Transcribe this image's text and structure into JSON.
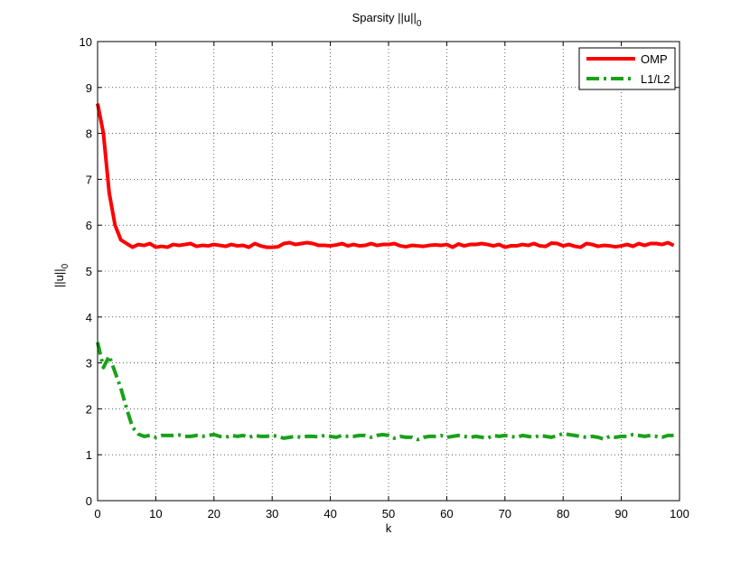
{
  "chart_data": {
    "type": "line",
    "title": "Sparsity ||u||",
    "title_subscript": "0",
    "xlabel": "k",
    "ylabel": "||u||",
    "ylabel_subscript": "0",
    "xlim": [
      0,
      100
    ],
    "ylim": [
      0,
      10
    ],
    "xticks": [
      0,
      10,
      20,
      30,
      40,
      50,
      60,
      70,
      80,
      90,
      100
    ],
    "yticks": [
      0,
      1,
      2,
      3,
      4,
      5,
      6,
      7,
      8,
      9,
      10
    ],
    "grid": true,
    "legend_position": "top-right",
    "x": [
      0,
      1,
      2,
      3,
      4,
      5,
      6,
      7,
      8,
      9,
      10,
      11,
      12,
      13,
      14,
      15,
      16,
      17,
      18,
      19,
      20,
      21,
      22,
      23,
      24,
      25,
      26,
      27,
      28,
      29,
      30,
      31,
      32,
      33,
      34,
      35,
      36,
      37,
      38,
      39,
      40,
      41,
      42,
      43,
      44,
      45,
      46,
      47,
      48,
      49,
      50,
      51,
      52,
      53,
      54,
      55,
      56,
      57,
      58,
      59,
      60,
      61,
      62,
      63,
      64,
      65,
      66,
      67,
      68,
      69,
      70,
      71,
      72,
      73,
      74,
      75,
      76,
      77,
      78,
      79,
      80,
      81,
      82,
      83,
      84,
      85,
      86,
      87,
      88,
      89,
      90,
      91,
      92,
      93,
      94,
      95,
      96,
      97,
      98,
      99
    ],
    "series": [
      {
        "name": "OMP",
        "color": "#ff0000",
        "style": "solid",
        "values": [
          8.65,
          8.0,
          6.7,
          6.0,
          5.68,
          5.6,
          5.52,
          5.58,
          5.56,
          5.6,
          5.52,
          5.54,
          5.52,
          5.58,
          5.56,
          5.58,
          5.6,
          5.54,
          5.56,
          5.55,
          5.58,
          5.56,
          5.54,
          5.58,
          5.55,
          5.56,
          5.52,
          5.6,
          5.55,
          5.52,
          5.52,
          5.53,
          5.6,
          5.62,
          5.58,
          5.6,
          5.62,
          5.6,
          5.56,
          5.56,
          5.55,
          5.57,
          5.6,
          5.55,
          5.58,
          5.55,
          5.56,
          5.6,
          5.56,
          5.58,
          5.58,
          5.6,
          5.55,
          5.53,
          5.56,
          5.55,
          5.54,
          5.56,
          5.57,
          5.56,
          5.58,
          5.52,
          5.59,
          5.55,
          5.58,
          5.58,
          5.6,
          5.58,
          5.55,
          5.58,
          5.52,
          5.55,
          5.55,
          5.58,
          5.56,
          5.6,
          5.55,
          5.54,
          5.61,
          5.6,
          5.55,
          5.58,
          5.54,
          5.52,
          5.6,
          5.58,
          5.54,
          5.56,
          5.55,
          5.53,
          5.55,
          5.58,
          5.54,
          5.6,
          5.56,
          5.6,
          5.6,
          5.58,
          5.62,
          5.56
        ]
      },
      {
        "name": "L1/L2",
        "color": "#1aa11a",
        "style": "dashdot",
        "values": [
          3.45,
          2.9,
          3.15,
          2.8,
          2.45,
          2.0,
          1.6,
          1.45,
          1.4,
          1.42,
          1.38,
          1.42,
          1.42,
          1.42,
          1.43,
          1.4,
          1.4,
          1.42,
          1.4,
          1.42,
          1.44,
          1.4,
          1.38,
          1.42,
          1.4,
          1.42,
          1.38,
          1.42,
          1.4,
          1.4,
          1.42,
          1.4,
          1.36,
          1.38,
          1.4,
          1.38,
          1.4,
          1.4,
          1.39,
          1.42,
          1.4,
          1.38,
          1.42,
          1.4,
          1.4,
          1.42,
          1.42,
          1.38,
          1.42,
          1.44,
          1.42,
          1.36,
          1.4,
          1.38,
          1.38,
          1.33,
          1.38,
          1.4,
          1.4,
          1.42,
          1.38,
          1.4,
          1.42,
          1.4,
          1.38,
          1.4,
          1.38,
          1.36,
          1.42,
          1.4,
          1.42,
          1.4,
          1.38,
          1.42,
          1.4,
          1.38,
          1.42,
          1.4,
          1.38,
          1.42,
          1.46,
          1.44,
          1.42,
          1.4,
          1.38,
          1.4,
          1.38,
          1.34,
          1.4,
          1.38,
          1.4,
          1.4,
          1.44,
          1.42,
          1.4,
          1.42,
          1.4,
          1.38,
          1.42,
          1.42
        ]
      }
    ]
  }
}
